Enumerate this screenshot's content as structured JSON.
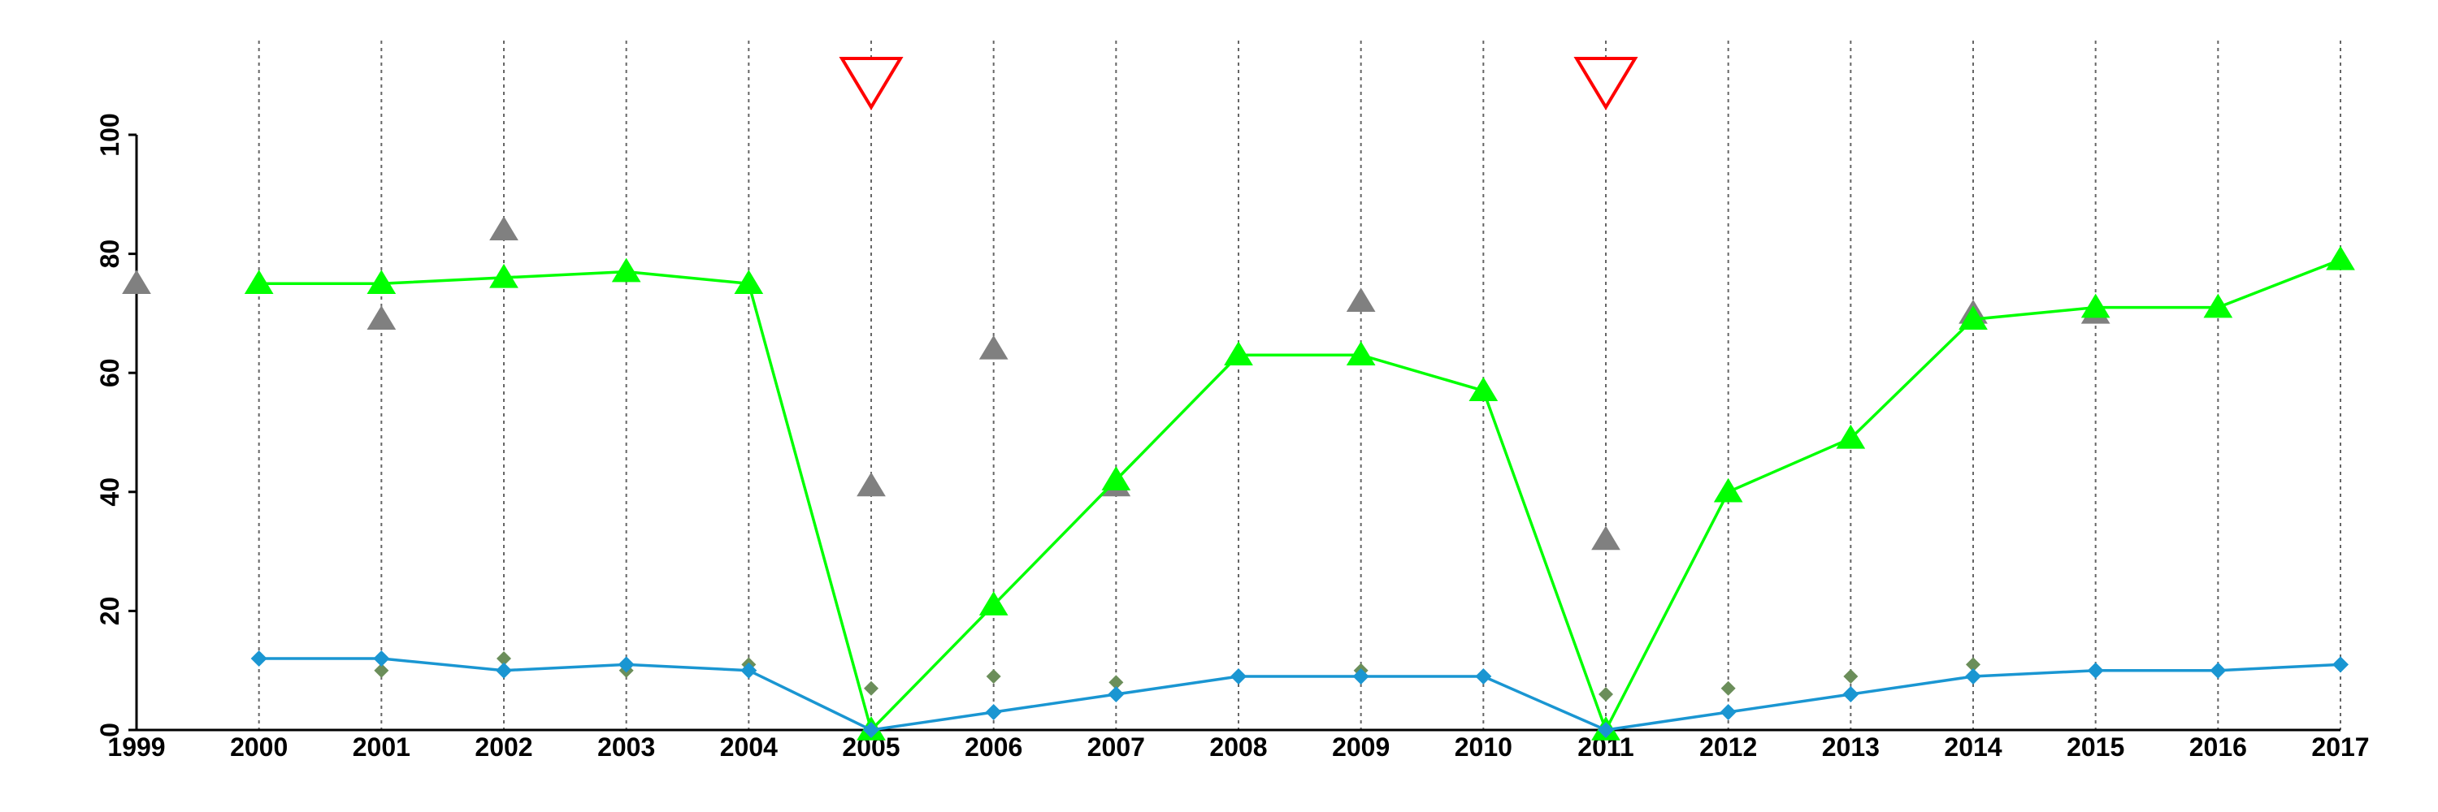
{
  "chart_data": {
    "type": "line",
    "x": [
      1999,
      2000,
      2001,
      2002,
      2003,
      2004,
      2005,
      2006,
      2007,
      2008,
      2009,
      2010,
      2011,
      2012,
      2013,
      2014,
      2015,
      2016,
      2017
    ],
    "x_tick_labels": [
      "1999",
      "2000",
      "2001",
      "2002",
      "2003",
      "2004",
      "2005",
      "2006",
      "2007",
      "2008",
      "2009",
      "2010",
      "2011",
      "2012",
      "2013",
      "2014",
      "2015",
      "2016",
      "2017"
    ],
    "y_ticks": [
      0,
      20,
      40,
      60,
      80,
      100
    ],
    "y_tick_labels": [
      "0",
      "20",
      "40",
      "60",
      "80",
      "100"
    ],
    "xlim": [
      1999,
      2017
    ],
    "ylim": [
      0,
      100
    ],
    "vertical_gridlines": true,
    "series": [
      {
        "type": "line",
        "marker": "triangle",
        "color": "#00ff00",
        "points": [
          [
            2000,
            75
          ],
          [
            2001,
            75
          ],
          [
            2002,
            76
          ],
          [
            2003,
            77
          ],
          [
            2004,
            75
          ],
          [
            2005,
            0
          ],
          [
            2006,
            21
          ],
          [
            2007,
            42
          ],
          [
            2008,
            63
          ],
          [
            2009,
            63
          ],
          [
            2010,
            57
          ],
          [
            2011,
            0
          ],
          [
            2012,
            40
          ],
          [
            2013,
            49
          ],
          [
            2014,
            69
          ],
          [
            2015,
            71
          ],
          [
            2016,
            71
          ],
          [
            2017,
            79
          ]
        ]
      },
      {
        "type": "line",
        "marker": "diamond",
        "color": "#1a96d2",
        "points": [
          [
            2000,
            12
          ],
          [
            2001,
            12
          ],
          [
            2002,
            10
          ],
          [
            2003,
            11
          ],
          [
            2004,
            10
          ],
          [
            2005,
            0
          ],
          [
            2006,
            3
          ],
          [
            2007,
            6
          ],
          [
            2008,
            9
          ],
          [
            2009,
            9
          ],
          [
            2010,
            9
          ],
          [
            2011,
            0
          ],
          [
            2012,
            3
          ],
          [
            2013,
            6
          ],
          [
            2014,
            9
          ],
          [
            2015,
            10
          ],
          [
            2016,
            10
          ],
          [
            2017,
            11
          ]
        ]
      },
      {
        "type": "scatter",
        "marker": "triangle",
        "color": "#808080",
        "points": [
          [
            1999,
            75
          ],
          [
            2001,
            69
          ],
          [
            2002,
            84
          ],
          [
            2005,
            41
          ],
          [
            2006,
            64
          ],
          [
            2007,
            41
          ],
          [
            2009,
            72
          ],
          [
            2011,
            32
          ],
          [
            2014,
            70
          ],
          [
            2015,
            70
          ]
        ]
      },
      {
        "type": "scatter",
        "marker": "diamond",
        "color": "#6b8e5a",
        "points": [
          [
            2001,
            10
          ],
          [
            2002,
            12
          ],
          [
            2003,
            10
          ],
          [
            2004,
            11
          ],
          [
            2005,
            7
          ],
          [
            2006,
            9
          ],
          [
            2007,
            8
          ],
          [
            2009,
            10
          ],
          [
            2011,
            6
          ],
          [
            2012,
            7
          ],
          [
            2013,
            9
          ],
          [
            2014,
            11
          ]
        ]
      }
    ],
    "event_markers": {
      "marker": "open-down-triangle",
      "color": "#ff0000",
      "x": [
        2005,
        2011
      ]
    }
  }
}
